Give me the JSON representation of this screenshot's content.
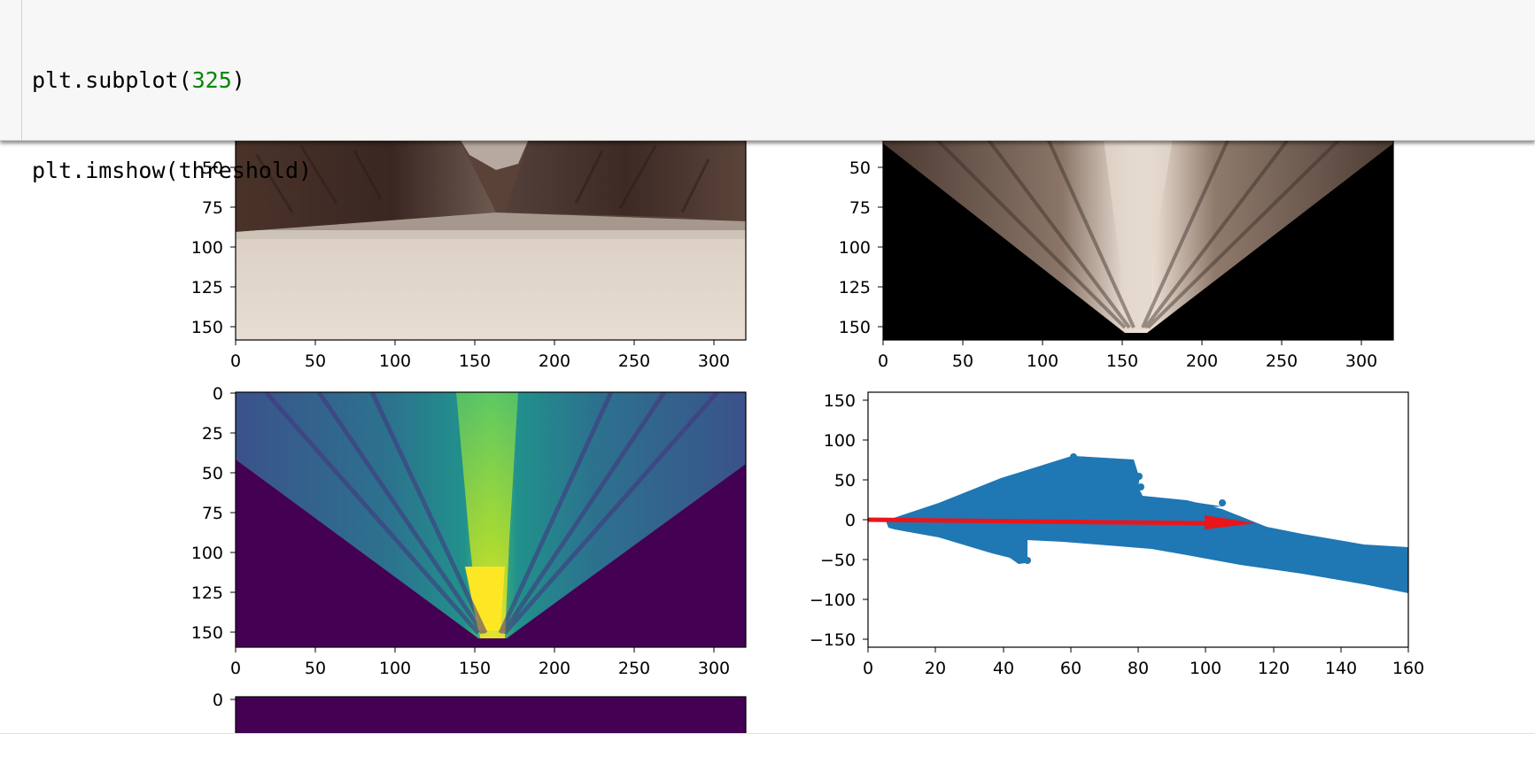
{
  "code_cell": {
    "line1": {
      "fn": "plt.subplot(",
      "arg": "325",
      "close": ")"
    },
    "line2": "plt.imshow(threshold)"
  },
  "plots": {
    "camera": {
      "y_ticks": [
        "50",
        "75",
        "100",
        "125",
        "150"
      ],
      "x_ticks": [
        "0",
        "50",
        "100",
        "150",
        "200",
        "250",
        "300"
      ]
    },
    "warped": {
      "y_ticks": [
        "50",
        "75",
        "100",
        "125",
        "150"
      ],
      "x_ticks": [
        "0",
        "50",
        "100",
        "150",
        "200",
        "250",
        "300"
      ]
    },
    "threshold": {
      "y_ticks": [
        "0",
        "25",
        "50",
        "75",
        "100",
        "125",
        "150"
      ],
      "x_ticks": [
        "0",
        "50",
        "100",
        "150",
        "200",
        "250",
        "300"
      ]
    },
    "rover_coords": {
      "y_ticks": [
        "150",
        "100",
        "50",
        "0",
        "−50",
        "−100",
        "−150"
      ],
      "x_ticks": [
        "0",
        "20",
        "40",
        "60",
        "80",
        "100",
        "120",
        "140",
        "160"
      ]
    },
    "sixth": {
      "y_ticks": [
        "0"
      ]
    }
  },
  "colors": {
    "scatter": "#1f77b4",
    "arrow": "#e8161b",
    "viridis_dark": "#440154",
    "viridis_bright": "#fde725"
  }
}
